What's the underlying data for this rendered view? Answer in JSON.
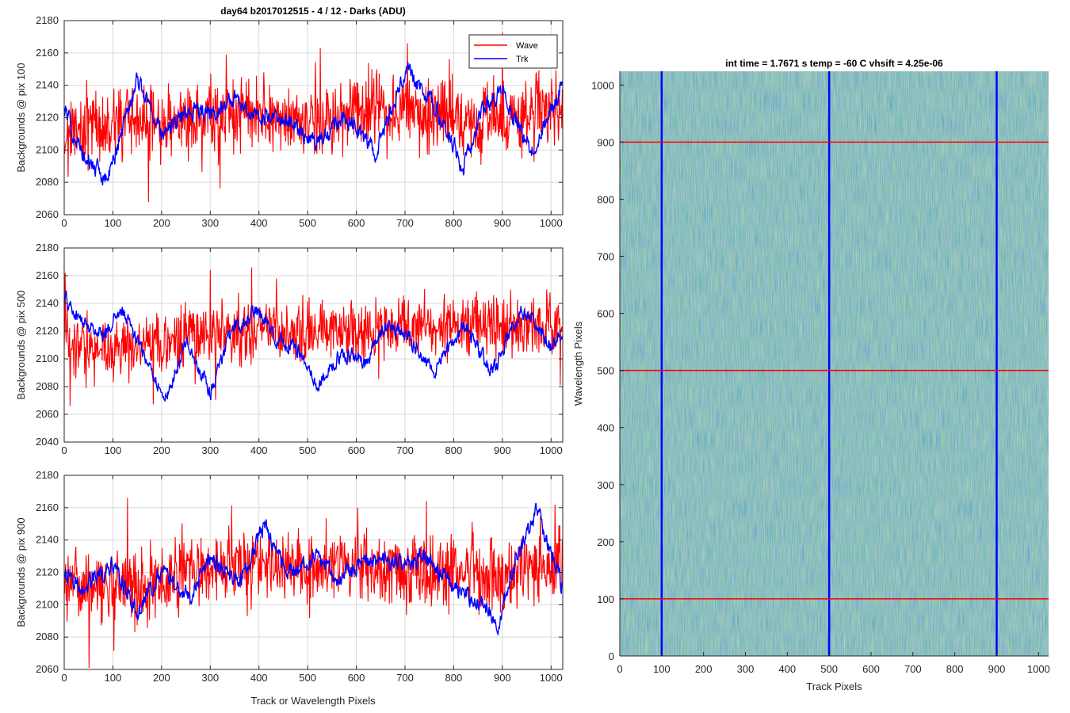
{
  "figure": {
    "title": "day64 b2017012515 - 4 / 12 - Darks (ADU)",
    "shared_xlabel": "Track or Wavelength Pixels"
  },
  "colors": {
    "wave": "#ff0000",
    "trk": "#0000ff",
    "grid": "#d9d9d9",
    "axis": "#262626",
    "image_base": "#27a9a5",
    "image_high": "#c6c843",
    "image_low": "#1b7fd0"
  },
  "chart_data": [
    {
      "type": "line",
      "ylabel": "Backgrounds @ pix 100",
      "xlim": [
        0,
        1024
      ],
      "ylim": [
        2060,
        2180
      ],
      "xticks": [
        0,
        100,
        200,
        300,
        400,
        500,
        600,
        700,
        800,
        900,
        1000
      ],
      "yticks": [
        2060,
        2080,
        2100,
        2120,
        2140,
        2160,
        2180
      ],
      "grid": true,
      "legend": {
        "placement": "top-right",
        "entries": [
          "Wave",
          "Trk"
        ]
      },
      "series": [
        {
          "name": "Wave",
          "color": "#ff0000",
          "x": [
            0,
            100,
            200,
            300,
            400,
            500,
            600,
            700,
            800,
            900,
            1000,
            1024
          ],
          "y": [
            2110,
            2118,
            2114,
            2120,
            2122,
            2118,
            2124,
            2122,
            2120,
            2118,
            2124,
            2122
          ]
        },
        {
          "name": "Trk",
          "color": "#0000ff",
          "x": [
            0,
            40,
            90,
            150,
            200,
            260,
            300,
            350,
            400,
            460,
            520,
            580,
            640,
            700,
            760,
            820,
            860,
            900,
            960,
            1024
          ],
          "y": [
            2125,
            2095,
            2082,
            2145,
            2110,
            2125,
            2122,
            2132,
            2120,
            2117,
            2105,
            2120,
            2098,
            2150,
            2128,
            2090,
            2125,
            2135,
            2098,
            2140
          ]
        }
      ]
    },
    {
      "type": "line",
      "ylabel": "Backgrounds @ pix 500",
      "xlim": [
        0,
        1024
      ],
      "ylim": [
        2040,
        2180
      ],
      "xticks": [
        0,
        100,
        200,
        300,
        400,
        500,
        600,
        700,
        800,
        900,
        1000
      ],
      "yticks": [
        2040,
        2060,
        2080,
        2100,
        2120,
        2140,
        2160,
        2180
      ],
      "grid": true,
      "series": [
        {
          "name": "Wave",
          "color": "#ff0000",
          "x": [
            0,
            100,
            200,
            300,
            400,
            500,
            600,
            700,
            800,
            900,
            1000,
            1024
          ],
          "y": [
            2115,
            2110,
            2112,
            2118,
            2120,
            2122,
            2120,
            2122,
            2124,
            2122,
            2126,
            2124
          ]
        },
        {
          "name": "Trk",
          "color": "#0000ff",
          "x": [
            0,
            30,
            80,
            120,
            160,
            210,
            250,
            300,
            340,
            400,
            440,
            480,
            520,
            570,
            620,
            660,
            700,
            760,
            820,
            880,
            940,
            1000,
            1024
          ],
          "y": [
            2145,
            2128,
            2118,
            2135,
            2105,
            2070,
            2115,
            2075,
            2118,
            2135,
            2112,
            2108,
            2080,
            2105,
            2096,
            2125,
            2118,
            2090,
            2125,
            2090,
            2138,
            2110,
            2120
          ]
        }
      ]
    },
    {
      "type": "line",
      "ylabel": "Backgrounds @ pix 900",
      "xlim": [
        0,
        1024
      ],
      "ylim": [
        2060,
        2180
      ],
      "xticks": [
        0,
        100,
        200,
        300,
        400,
        500,
        600,
        700,
        800,
        900,
        1000
      ],
      "yticks": [
        2060,
        2080,
        2100,
        2120,
        2140,
        2160,
        2180
      ],
      "grid": true,
      "series": [
        {
          "name": "Wave",
          "color": "#ff0000",
          "x": [
            0,
            100,
            200,
            300,
            400,
            500,
            600,
            700,
            800,
            900,
            1000,
            1024
          ],
          "y": [
            2110,
            2112,
            2115,
            2120,
            2124,
            2122,
            2124,
            2122,
            2120,
            2118,
            2124,
            2122
          ]
        },
        {
          "name": "Trk",
          "color": "#0000ff",
          "x": [
            0,
            40,
            100,
            150,
            200,
            260,
            300,
            360,
            410,
            460,
            520,
            560,
            620,
            680,
            740,
            800,
            860,
            890,
            930,
            970,
            1024
          ],
          "y": [
            2120,
            2110,
            2125,
            2095,
            2120,
            2105,
            2130,
            2112,
            2150,
            2118,
            2130,
            2115,
            2128,
            2125,
            2130,
            2112,
            2100,
            2088,
            2130,
            2158,
            2110
          ]
        }
      ]
    },
    {
      "type": "heatmap",
      "title": "int time = 1.7671 s   temp = -60 C   vhsift = 4.25e-06",
      "xlabel": "Track Pixels",
      "ylabel": "Wavelength Pixels",
      "xlim": [
        0,
        1024
      ],
      "ylim": [
        0,
        1024
      ],
      "xticks": [
        0,
        100,
        200,
        300,
        400,
        500,
        600,
        700,
        800,
        900,
        1000
      ],
      "yticks": [
        0,
        100,
        200,
        300,
        400,
        500,
        600,
        700,
        800,
        900,
        1000
      ],
      "vertical_markers": {
        "color": "#0000ff",
        "x": [
          100,
          500,
          900
        ]
      },
      "horizontal_markers": {
        "color": "#ff0000",
        "y": [
          100,
          500,
          900
        ]
      }
    }
  ]
}
